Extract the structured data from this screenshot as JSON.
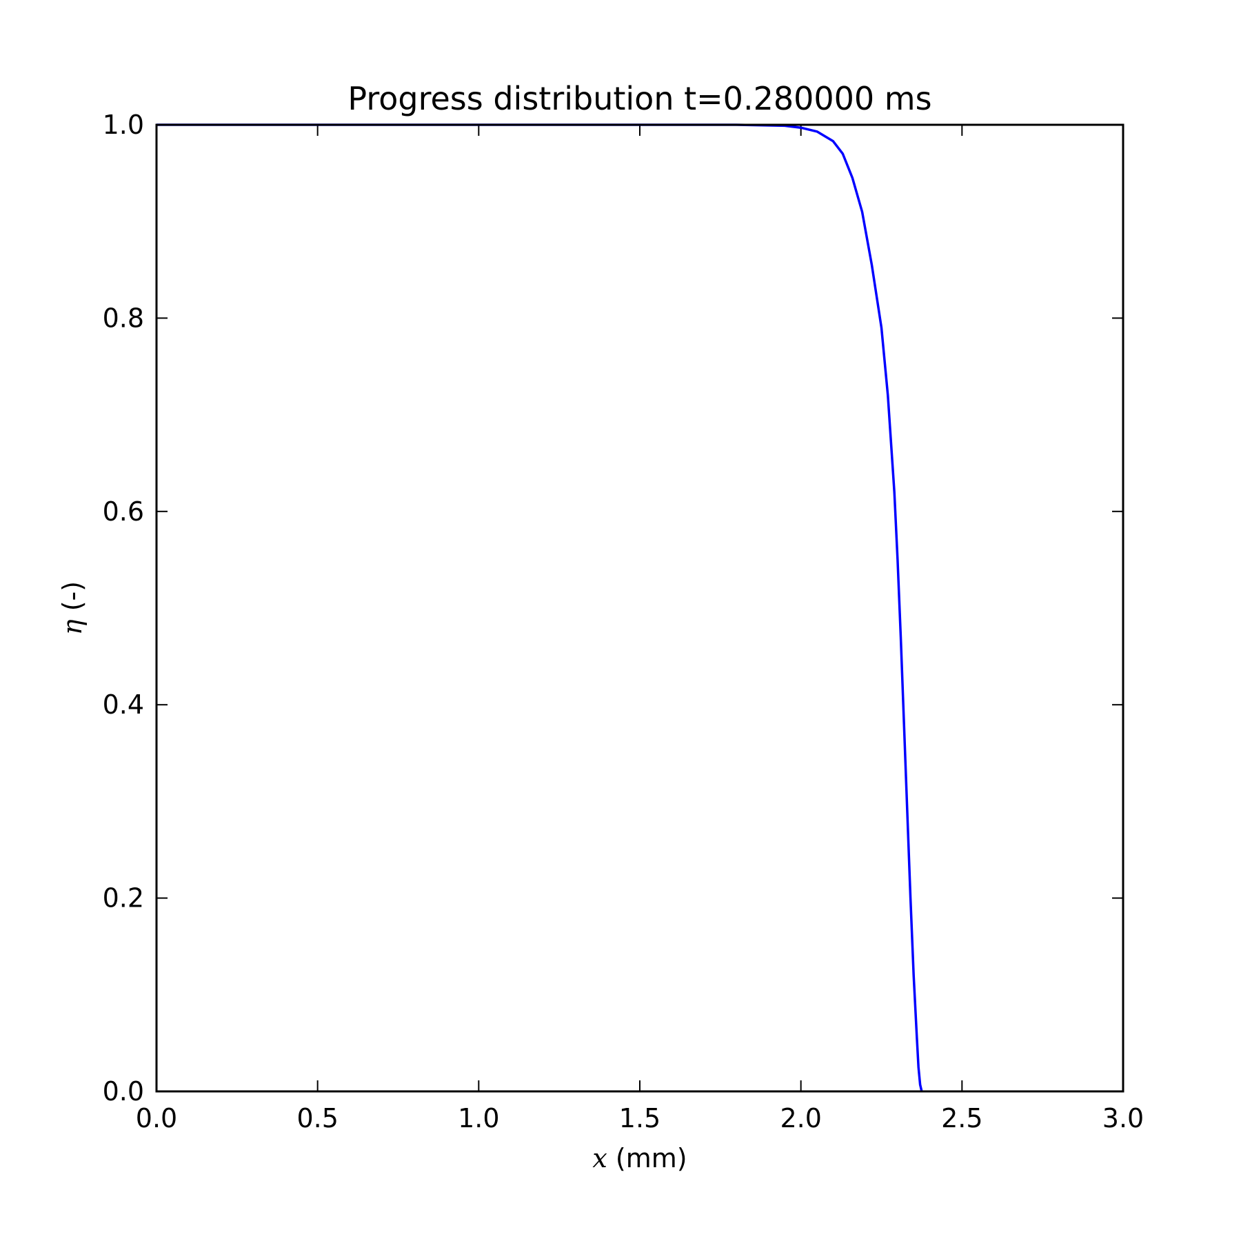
{
  "chart_data": {
    "type": "line",
    "title": "Progress distribution t=0.280000 ms",
    "xlabel_symbol": "x",
    "xlabel_unit": " (mm)",
    "ylabel_symbol": "η",
    "ylabel_unit": " (-)",
    "xlim": [
      0.0,
      3.0
    ],
    "ylim": [
      0.0,
      1.0
    ],
    "xticks": [
      0.0,
      0.5,
      1.0,
      1.5,
      2.0,
      2.5,
      3.0
    ],
    "xtick_labels": [
      "0.0",
      "0.5",
      "1.0",
      "1.5",
      "2.0",
      "2.5",
      "3.0"
    ],
    "yticks": [
      0.0,
      0.2,
      0.4,
      0.6,
      0.8,
      1.0
    ],
    "ytick_labels": [
      "0.0",
      "0.2",
      "0.4",
      "0.6",
      "0.8",
      "1.0"
    ],
    "grid": false,
    "series": [
      {
        "color": "#0000ff",
        "x": [
          0.0,
          0.5,
          1.0,
          1.5,
          1.8,
          1.95,
          2.0,
          2.05,
          2.1,
          2.13,
          2.16,
          2.19,
          2.22,
          2.25,
          2.27,
          2.29,
          2.3,
          2.31,
          2.32,
          2.33,
          2.34,
          2.35,
          2.36,
          2.365,
          2.37,
          2.375
        ],
        "y": [
          1.0,
          1.0,
          1.0,
          1.0,
          1.0,
          0.999,
          0.997,
          0.993,
          0.983,
          0.97,
          0.945,
          0.91,
          0.855,
          0.79,
          0.72,
          0.62,
          0.55,
          0.47,
          0.38,
          0.29,
          0.2,
          0.12,
          0.055,
          0.025,
          0.007,
          0.0
        ]
      }
    ]
  }
}
